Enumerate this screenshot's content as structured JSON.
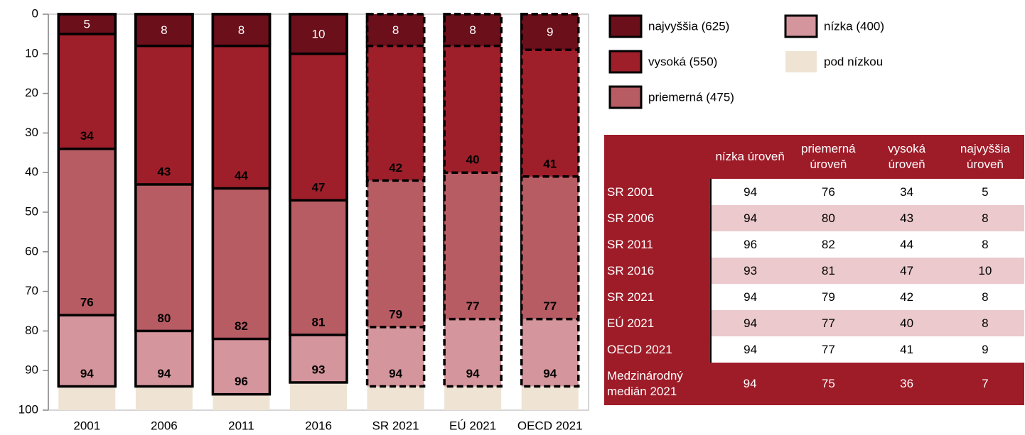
{
  "chart_data": {
    "type": "bar",
    "categories": [
      "2001",
      "2006",
      "2011",
      "2016",
      "SR 2021",
      "EÚ 2021",
      "OECD 2021"
    ],
    "dashed": [
      false,
      false,
      false,
      false,
      true,
      true,
      true
    ],
    "series": [
      {
        "name": "najvyššia (625)",
        "color": "#6b0f1a",
        "outline": true,
        "values": [
          5,
          8,
          8,
          10,
          8,
          8,
          9
        ]
      },
      {
        "name": "vysoká (550)",
        "color": "#9e1f2a",
        "outline": true,
        "values": [
          34,
          43,
          44,
          47,
          42,
          40,
          41
        ]
      },
      {
        "name": "priemerná (475)",
        "color": "#b85c64",
        "outline": true,
        "values": [
          76,
          80,
          82,
          81,
          79,
          77,
          77
        ]
      },
      {
        "name": "nízka (400)",
        "color": "#d4959c",
        "outline": true,
        "values": [
          94,
          94,
          96,
          93,
          94,
          94,
          94
        ]
      },
      {
        "name": "pod nízkou",
        "color": "#efe3d4",
        "outline": false,
        "values": [
          100,
          100,
          100,
          100,
          100,
          100,
          100
        ]
      }
    ],
    "ylim": [
      0,
      100
    ],
    "y_inverted": true,
    "yticks": [
      0,
      10,
      20,
      30,
      40,
      50,
      60,
      70,
      80,
      90,
      100
    ]
  },
  "table": {
    "columns": [
      "nízka úroveň",
      "priemerná úroveň",
      "vysoká úroveň",
      "najvyššia úroveň"
    ],
    "rows": [
      {
        "label": "SR 2001",
        "values": [
          94,
          76,
          34,
          5
        ]
      },
      {
        "label": "SR 2006",
        "values": [
          94,
          80,
          43,
          8
        ]
      },
      {
        "label": "SR 2011",
        "values": [
          96,
          82,
          44,
          8
        ]
      },
      {
        "label": "SR 2016",
        "values": [
          93,
          81,
          47,
          10
        ]
      },
      {
        "label": "SR 2021",
        "values": [
          94,
          79,
          42,
          8
        ]
      },
      {
        "label": "EÚ 2021",
        "values": [
          94,
          77,
          40,
          8
        ]
      },
      {
        "label": "OECD 2021",
        "values": [
          94,
          77,
          41,
          9
        ]
      },
      {
        "label": "Medzinárodný medián 2021",
        "values": [
          94,
          75,
          36,
          7
        ]
      }
    ]
  }
}
